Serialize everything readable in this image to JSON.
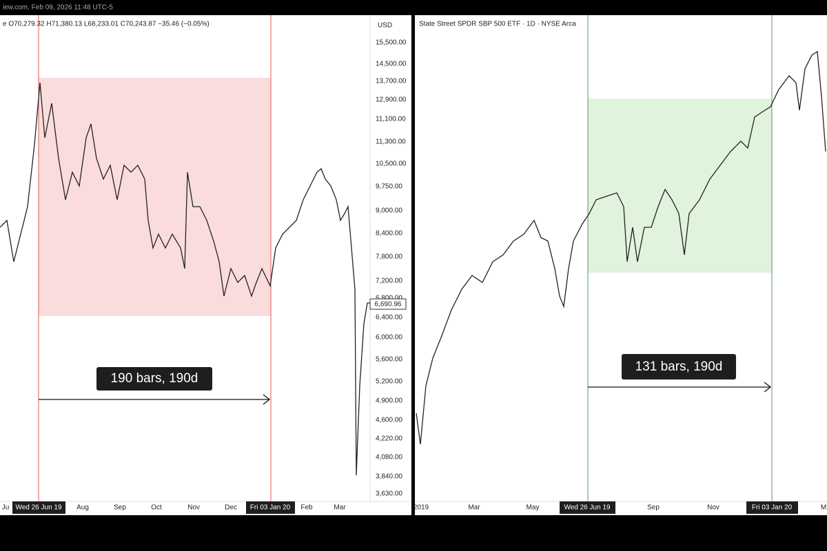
{
  "top_bar": {
    "text": "iew.com, Feb 09, 2026 11:48 UTC-5"
  },
  "left_chart": {
    "header": "e O70,279.32 H71,380.13 L68,233.01 C70,243.87 −35.46 (−0.05%)",
    "axis_unit": "USD",
    "axis_labels": [
      "15,500.00",
      "14,500.00",
      "13,700.00",
      "12,900.00",
      "11,100.00",
      "11,300.00",
      "10,500.00",
      "9,750.00",
      "9,000.00",
      "8,400.00",
      "7,800.00",
      "7,200.00",
      "6,800.00",
      "6,400.00",
      "6,000.00",
      "5,600.00",
      "5,200.00",
      "4,900.00",
      "4,600.00",
      "4,220.00",
      "4,080.00",
      "3,840.00",
      "3,630.00"
    ],
    "price_label": "6,690.96",
    "x_labels": [
      "Ju",
      "Aug",
      "Sep",
      "Oct",
      "Nov",
      "Dec",
      "Feb",
      "Mar"
    ],
    "range_start": "Wed 26 Jun 19",
    "range_end": "Fri 03 Jan 20",
    "measure_label": "190 bars, 190d"
  },
  "right_chart": {
    "header": "State Street SPDR SBP 500 ETF · 1D · NYSE Arca",
    "x_labels": [
      "2019",
      "Mar",
      "May",
      "Sep",
      "Nov",
      "M"
    ],
    "range_start": "Wed 26 Jun 19",
    "range_end": "Fri 03 Jan 20",
    "measure_label": "131 bars, 190d"
  }
}
